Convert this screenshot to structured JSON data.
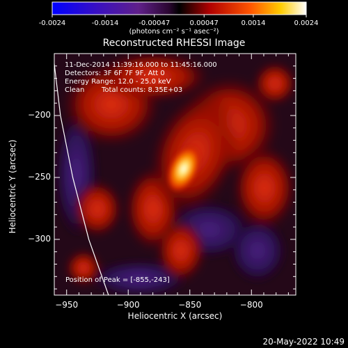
{
  "chart_data": {
    "type": "heatmap",
    "title": "Reconstructed RHESSI Image",
    "xlabel": "Heliocentric X (arcsec)",
    "ylabel": "Heliocentric Y (arcsec)",
    "xlim": [
      -960,
      -764
    ],
    "ylim": [
      -345,
      -150
    ],
    "x_ticks": [
      -950,
      -900,
      -850,
      -800
    ],
    "y_ticks": [
      -200,
      -250,
      -300
    ],
    "colorbar": {
      "range": [
        -0.0024,
        0.0024
      ],
      "tick_labels": [
        "-0.0024",
        "-0.0014",
        "-0.00047",
        "0.00047",
        "0.0014",
        "0.0024"
      ],
      "tick_values": [
        -0.0024,
        -0.0014,
        -0.00047,
        0.00047,
        0.0014,
        0.0024
      ],
      "units": "(photons cm⁻² s⁻¹ asec⁻²)"
    },
    "annotations": {
      "time_range": "11-Dec-2014 11:39:16.000 to 11:45:16.000",
      "detectors": "Detectors: 3F 6F 7F 9F, Att 0",
      "energy_range": "Energy Range: 12.0 - 25.0 keV",
      "clean": "Clean",
      "total_counts": "Total counts: 8.35E+03",
      "peak": "Position of Peak = [-855,-243]"
    },
    "peak_position": [
      -855,
      -243
    ],
    "peak_value": 0.0024,
    "limb_points": [
      [
        -961,
        -150
      ],
      [
        -955,
        -200
      ],
      [
        -945,
        -250
      ],
      [
        -932,
        -300
      ],
      [
        -916,
        -345
      ]
    ]
  },
  "colors": {
    "background": "#000000",
    "colormap": [
      "#0000ff",
      "#5a1f9e",
      "#2a0f4a",
      "#1a0000",
      "#c01000",
      "#ff5a00",
      "#ffe000",
      "#ffffff"
    ]
  },
  "footer": {
    "date": "20-May-2022 10:49"
  }
}
